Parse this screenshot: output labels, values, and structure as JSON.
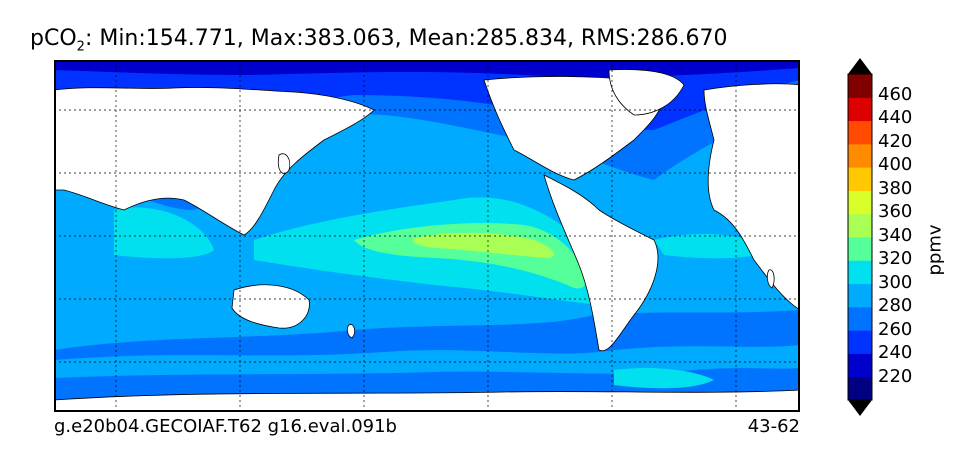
{
  "title": {
    "var_main": "pCO",
    "var_sub": "2",
    "stats": ": Min:154.771, Max:383.063, Mean:285.834, RMS:286.670"
  },
  "footer": {
    "left": "g.e20b04.GECOIAF.T62 g16.eval.091b",
    "right": "43-62"
  },
  "colorbar": {
    "label": "ppmv",
    "ticks": [
      "460",
      "440",
      "420",
      "400",
      "380",
      "360",
      "340",
      "320",
      "300",
      "280",
      "260",
      "240",
      "220"
    ],
    "colors": [
      "#000080",
      "#0000cc",
      "#0033ff",
      "#0073ff",
      "#00aaff",
      "#00e0ee",
      "#55ff99",
      "#aaff55",
      "#d8ff2a",
      "#ffc800",
      "#ff8c00",
      "#ff4a00",
      "#dd0000",
      "#800000"
    ]
  },
  "map": {
    "land_color": "#ffffff",
    "grid": true
  }
}
